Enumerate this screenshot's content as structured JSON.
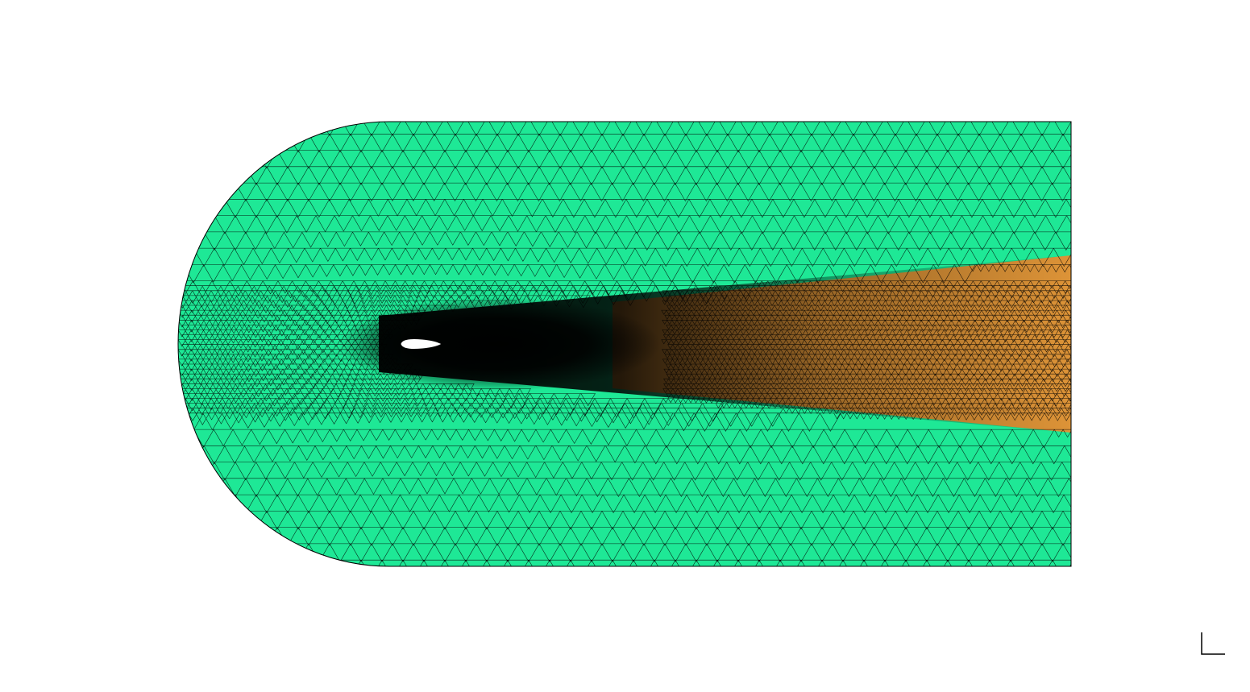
{
  "scene": {
    "background_color": "#ffffff",
    "mesh": {
      "element_type": "triangle",
      "far_field_fill_color": "#1ee896",
      "wake_region_fill_color": "#f0a03c",
      "edge_color": "#000000",
      "airfoil_fill_color": "#ffffff",
      "domain_shape": "C-domain (semicircular inlet, rectangular wake)"
    },
    "axis_triad": {
      "icon": "axis-triad-icon",
      "color": "#000000"
    }
  }
}
